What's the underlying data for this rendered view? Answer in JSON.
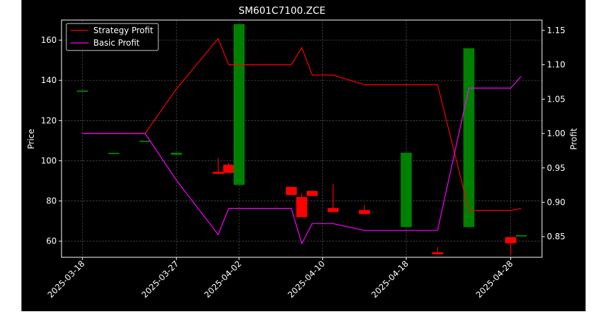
{
  "chart_data": {
    "type": "candlestick",
    "title": "SM601C7100.ZCE",
    "ylabel_left": "Price",
    "ylabel_right": "Profit",
    "ylim_left": [
      52,
      170
    ],
    "ylim_right": [
      0.82,
      1.165
    ],
    "yticks_left": [
      60,
      80,
      100,
      120,
      140,
      160
    ],
    "yticks_right": [
      0.85,
      0.9,
      0.95,
      1.0,
      1.05,
      1.1,
      1.15
    ],
    "ytick_labels_right": [
      "0.85",
      "0.90",
      "0.95",
      "1.00",
      "1.05",
      "1.10",
      "1.15"
    ],
    "xticks": [
      {
        "date": "2025-03-18",
        "label": "2025-03-18"
      },
      {
        "date": "2025-03-27",
        "label": "2025-03-27"
      },
      {
        "date": "2025-04-02",
        "label": "2025-04-02"
      },
      {
        "date": "2025-04-10",
        "label": "2025-04-10"
      },
      {
        "date": "2025-04-18",
        "label": "2025-04-18"
      },
      {
        "date": "2025-04-28",
        "label": "2025-04-28"
      }
    ],
    "grid": true,
    "legend_position": "top-left",
    "colors": {
      "up": "#008000",
      "down": "#ff0000",
      "strategy": "#ff0000",
      "basic": "#ff00ff"
    },
    "candles": [
      {
        "date": "2025-03-18",
        "open": 135.0,
        "close": 135.0,
        "high": 135.0,
        "low": 135.0
      },
      {
        "date": "2025-03-21",
        "open": 104.0,
        "close": 104.0,
        "high": 104.0,
        "low": 104.0
      },
      {
        "date": "2025-03-24",
        "open": 110.0,
        "close": 110.0,
        "high": 110.0,
        "low": 110.0
      },
      {
        "date": "2025-03-27",
        "open": 103.0,
        "close": 104.0,
        "high": 104.0,
        "low": 103.0
      },
      {
        "date": "2025-03-31",
        "open": 94.5,
        "close": 93.5,
        "high": 101.5,
        "low": 93.5
      },
      {
        "date": "2025-04-01",
        "open": 98.0,
        "close": 94.0,
        "high": 99.0,
        "low": 94.0
      },
      {
        "date": "2025-04-02",
        "open": 88.0,
        "close": 168.0,
        "high": 168.0,
        "low": 88.0
      },
      {
        "date": "2025-04-07",
        "open": 87.0,
        "close": 83.0,
        "high": 87.0,
        "low": 83.0
      },
      {
        "date": "2025-04-08",
        "open": 82.0,
        "close": 72.0,
        "high": 84.0,
        "low": 72.0
      },
      {
        "date": "2025-04-09",
        "open": 85.0,
        "close": 82.5,
        "high": 85.0,
        "low": 82.5
      },
      {
        "date": "2025-04-11",
        "open": 76.5,
        "close": 74.5,
        "high": 88.5,
        "low": 74.5
      },
      {
        "date": "2025-04-14",
        "open": 75.5,
        "close": 73.5,
        "high": 78.0,
        "low": 73.5
      },
      {
        "date": "2025-04-18",
        "open": 67.0,
        "close": 104.0,
        "high": 104.0,
        "low": 67.0
      },
      {
        "date": "2025-04-21",
        "open": 54.5,
        "close": 53.5,
        "high": 57.0,
        "low": 53.5
      },
      {
        "date": "2025-04-24",
        "open": 67.0,
        "close": 156.0,
        "high": 156.0,
        "low": 67.0
      },
      {
        "date": "2025-04-28",
        "open": 62.0,
        "close": 59.0,
        "high": 62.0,
        "low": 53.0
      },
      {
        "date": "2025-04-29",
        "open": 63.0,
        "close": 63.0,
        "high": 63.0,
        "low": 63.0
      }
    ],
    "series": [
      {
        "name": "Strategy Profit",
        "points": [
          {
            "date": "2025-03-18",
            "value": 1.0
          },
          {
            "date": "2025-03-21",
            "value": 1.0
          },
          {
            "date": "2025-03-24",
            "value": 1.0
          },
          {
            "date": "2025-03-27",
            "value": 1.065
          },
          {
            "date": "2025-03-31",
            "value": 1.138
          },
          {
            "date": "2025-04-01",
            "value": 1.1
          },
          {
            "date": "2025-04-02",
            "value": 1.1
          },
          {
            "date": "2025-04-07",
            "value": 1.1
          },
          {
            "date": "2025-04-08",
            "value": 1.125
          },
          {
            "date": "2025-04-09",
            "value": 1.085
          },
          {
            "date": "2025-04-11",
            "value": 1.085
          },
          {
            "date": "2025-04-14",
            "value": 1.071
          },
          {
            "date": "2025-04-18",
            "value": 1.071
          },
          {
            "date": "2025-04-21",
            "value": 1.071
          },
          {
            "date": "2025-04-24",
            "value": 0.888
          },
          {
            "date": "2025-04-28",
            "value": 0.888
          },
          {
            "date": "2025-04-29",
            "value": 0.891
          }
        ]
      },
      {
        "name": "Basic Profit",
        "points": [
          {
            "date": "2025-03-18",
            "value": 1.0
          },
          {
            "date": "2025-03-21",
            "value": 1.0
          },
          {
            "date": "2025-03-24",
            "value": 1.0
          },
          {
            "date": "2025-03-27",
            "value": 0.932
          },
          {
            "date": "2025-03-31",
            "value": 0.853
          },
          {
            "date": "2025-04-01",
            "value": 0.891
          },
          {
            "date": "2025-04-02",
            "value": 0.891
          },
          {
            "date": "2025-04-07",
            "value": 0.891
          },
          {
            "date": "2025-04-08",
            "value": 0.84
          },
          {
            "date": "2025-04-09",
            "value": 0.869
          },
          {
            "date": "2025-04-11",
            "value": 0.869
          },
          {
            "date": "2025-04-14",
            "value": 0.859
          },
          {
            "date": "2025-04-18",
            "value": 0.859
          },
          {
            "date": "2025-04-21",
            "value": 0.859
          },
          {
            "date": "2025-04-24",
            "value": 1.066
          },
          {
            "date": "2025-04-28",
            "value": 1.066
          },
          {
            "date": "2025-04-29",
            "value": 1.083
          }
        ]
      }
    ]
  }
}
